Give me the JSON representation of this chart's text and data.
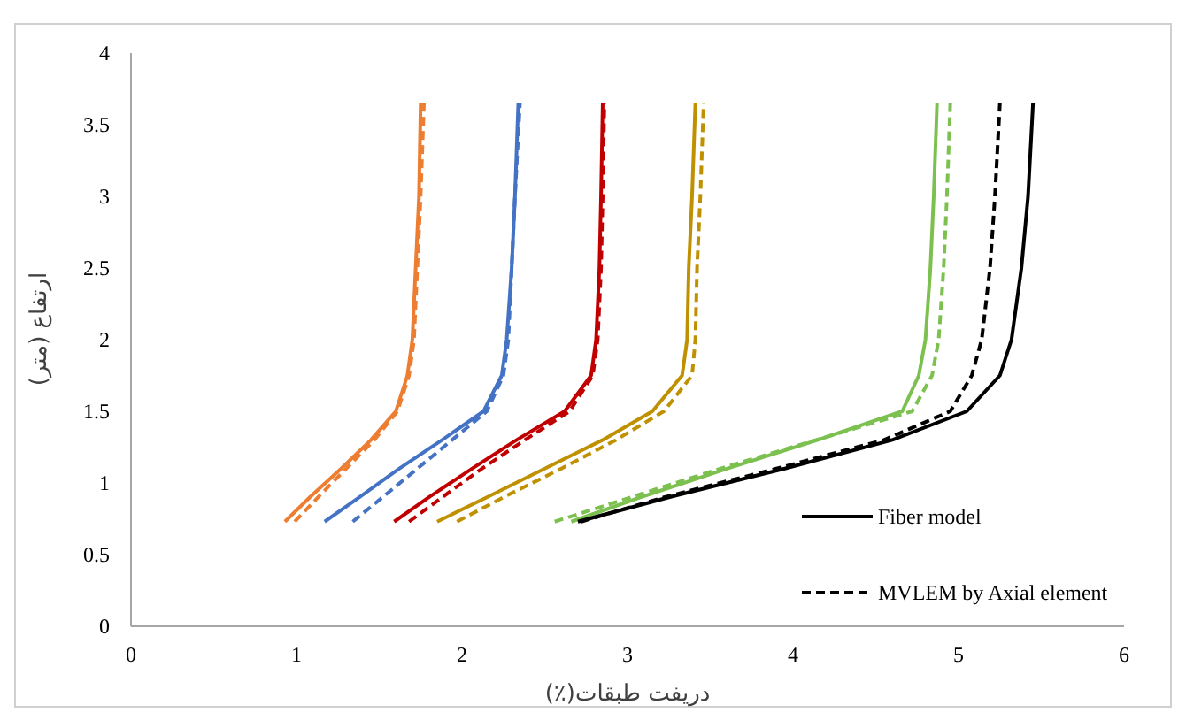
{
  "chart_data": {
    "type": "line",
    "xlabel": "دریفت طبقات(٪)",
    "ylabel": "ارتفاع (متر)",
    "xlim": [
      0,
      6
    ],
    "ylim": [
      0,
      4
    ],
    "xticks": [
      0,
      1,
      2,
      3,
      4,
      5,
      6
    ],
    "yticks": [
      0,
      0.5,
      1,
      1.5,
      2,
      2.5,
      3,
      3.5,
      4
    ],
    "legend": "bottom right",
    "series": [
      {
        "color": "#ed7d31",
        "line_style": "solid",
        "x": [
          0.93,
          1.08,
          1.27,
          1.45,
          1.6,
          1.67,
          1.7,
          1.72,
          1.74,
          1.75
        ],
        "values": [
          0.73,
          0.9,
          1.1,
          1.3,
          1.5,
          1.75,
          2.0,
          2.5,
          3.0,
          3.65
        ]
      },
      {
        "color": "#ed7d31",
        "line_style": "dashed",
        "x": [
          0.99,
          1.13,
          1.3,
          1.47,
          1.61,
          1.68,
          1.71,
          1.73,
          1.75,
          1.77
        ],
        "values": [
          0.73,
          0.9,
          1.1,
          1.3,
          1.5,
          1.75,
          2.0,
          2.5,
          3.0,
          3.65
        ]
      },
      {
        "color": "#4472c4",
        "line_style": "solid",
        "x": [
          1.17,
          1.38,
          1.62,
          1.88,
          2.13,
          2.24,
          2.27,
          2.3,
          2.32,
          2.34
        ],
        "values": [
          0.73,
          0.9,
          1.1,
          1.3,
          1.5,
          1.75,
          2.0,
          2.5,
          3.0,
          3.65
        ]
      },
      {
        "color": "#4472c4",
        "line_style": "dashed",
        "x": [
          1.34,
          1.52,
          1.73,
          1.94,
          2.15,
          2.25,
          2.28,
          2.3,
          2.32,
          2.35
        ],
        "values": [
          0.73,
          0.9,
          1.1,
          1.3,
          1.5,
          1.75,
          2.0,
          2.5,
          3.0,
          3.65
        ]
      },
      {
        "color": "#c00000",
        "line_style": "solid",
        "x": [
          1.59,
          1.8,
          2.06,
          2.33,
          2.62,
          2.78,
          2.81,
          2.83,
          2.84,
          2.85
        ],
        "values": [
          0.73,
          0.9,
          1.1,
          1.3,
          1.5,
          1.75,
          2.0,
          2.5,
          3.0,
          3.65
        ]
      },
      {
        "color": "#c00000",
        "line_style": "dashed",
        "x": [
          1.68,
          1.88,
          2.12,
          2.38,
          2.65,
          2.79,
          2.82,
          2.84,
          2.85,
          2.86
        ],
        "values": [
          0.73,
          0.9,
          1.1,
          1.3,
          1.5,
          1.75,
          2.0,
          2.5,
          3.0,
          3.65
        ]
      },
      {
        "color": "#bf9000",
        "line_style": "solid",
        "x": [
          1.85,
          2.15,
          2.5,
          2.85,
          3.15,
          3.33,
          3.36,
          3.37,
          3.39,
          3.41
        ],
        "values": [
          0.73,
          0.9,
          1.1,
          1.3,
          1.5,
          1.75,
          2.0,
          2.5,
          3.0,
          3.65
        ]
      },
      {
        "color": "#bf9000",
        "line_style": "dashed",
        "x": [
          1.97,
          2.25,
          2.6,
          2.93,
          3.22,
          3.39,
          3.41,
          3.42,
          3.44,
          3.46
        ],
        "values": [
          0.73,
          0.9,
          1.1,
          1.3,
          1.5,
          1.75,
          2.0,
          2.5,
          3.0,
          3.65
        ]
      },
      {
        "color": "#7cc04f",
        "line_style": "solid",
        "x": [
          2.66,
          3.08,
          3.6,
          4.15,
          4.66,
          4.76,
          4.8,
          4.83,
          4.85,
          4.87
        ],
        "values": [
          0.73,
          0.9,
          1.1,
          1.3,
          1.5,
          1.75,
          2.0,
          2.5,
          3.0,
          3.65
        ]
      },
      {
        "color": "#7cc04f",
        "line_style": "dashed",
        "x": [
          2.56,
          3.02,
          3.56,
          4.14,
          4.72,
          4.84,
          4.88,
          4.91,
          4.93,
          4.95
        ],
        "values": [
          0.73,
          0.9,
          1.1,
          1.3,
          1.5,
          1.75,
          2.0,
          2.5,
          3.0,
          3.65
        ]
      },
      {
        "name": "Fiber model",
        "color": "#000000",
        "line_style": "solid",
        "x": [
          2.7,
          3.25,
          3.95,
          4.6,
          5.05,
          5.25,
          5.32,
          5.38,
          5.42,
          5.45
        ],
        "values": [
          0.73,
          0.9,
          1.1,
          1.3,
          1.5,
          1.75,
          2.0,
          2.5,
          3.0,
          3.65
        ]
      },
      {
        "name": "MVLEM by Axial element",
        "color": "#000000",
        "line_style": "dashed",
        "x": [
          2.72,
          3.22,
          3.9,
          4.55,
          4.95,
          5.08,
          5.14,
          5.19,
          5.22,
          5.25
        ],
        "values": [
          0.73,
          0.9,
          1.1,
          1.3,
          1.5,
          1.75,
          2.0,
          2.5,
          3.0,
          3.65
        ]
      }
    ]
  }
}
